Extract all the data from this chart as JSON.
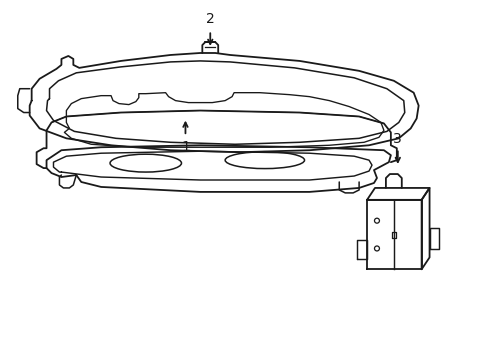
{
  "background_color": "#ffffff",
  "line_color": "#1a1a1a",
  "line_width": 1.3,
  "label_fontsize": 10,
  "parts": {
    "part1_label": "1",
    "part2_label": "2",
    "part3_label": "3"
  }
}
